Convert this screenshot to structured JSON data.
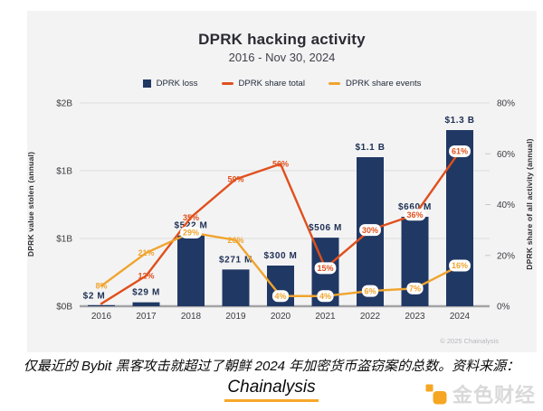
{
  "chart_data": {
    "type": "combo-bar-line",
    "title": "DPRK hacking activity",
    "subtitle": "2016 - Nov 30, 2024",
    "legend_position": "top",
    "grid": "horizontal",
    "background": "#f3f3f4",
    "categories": [
      "2016",
      "2017",
      "2018",
      "2019",
      "2020",
      "2021",
      "2022",
      "2023",
      "2024"
    ],
    "series": [
      {
        "name": "DPRK loss",
        "type": "bar",
        "axis": "left",
        "color": "#203864",
        "unit": "USD millions",
        "values": [
          2,
          29,
          522,
          271,
          300,
          506,
          1100,
          660,
          1300
        ],
        "labels": [
          "$2 M",
          "$29 M",
          "$522 M",
          "$271 M",
          "$300 M",
          "$506 M",
          "$1.1 B",
          "$660 M",
          "$1.3 B"
        ],
        "label_offsets": {
          "0": [
            -8,
            0
          ]
        }
      },
      {
        "name": "DPRK share total",
        "type": "line",
        "axis": "right",
        "color": "#e0501c",
        "unit": "%",
        "values": [
          1,
          12,
          35,
          50,
          56,
          15,
          30,
          36,
          61
        ],
        "labels": [
          "",
          "12%",
          "35%",
          "50%",
          "56%",
          "15%",
          "30%",
          "36%",
          "61%"
        ],
        "chips": [
          false,
          false,
          false,
          false,
          false,
          true,
          true,
          true,
          true
        ]
      },
      {
        "name": "DPRK share events",
        "type": "line",
        "axis": "right",
        "color": "#f0a42e",
        "unit": "%",
        "values": [
          8,
          21,
          29,
          26,
          4,
          4,
          6,
          7,
          16
        ],
        "labels": [
          "8%",
          "21%",
          "29%",
          "26%",
          "4%",
          "4%",
          "6%",
          "7%",
          "16%"
        ],
        "chips": [
          false,
          false,
          true,
          false,
          true,
          true,
          true,
          true,
          true
        ]
      }
    ],
    "axes": {
      "left": {
        "title": "DPRK value stolen (annual)",
        "tick_labels": [
          "$0B",
          "$1B",
          "$1B",
          "$2B"
        ],
        "tick_values_busd": [
          0,
          0.5,
          1,
          1.5
        ],
        "range_busd": [
          0,
          1.5
        ]
      },
      "right": {
        "title": "DPRK share of all activity (annual)",
        "tick_labels": [
          "0%",
          "20%",
          "40%",
          "60%",
          "80%"
        ],
        "tick_values_pct": [
          0,
          20,
          40,
          60,
          80
        ],
        "range_pct": [
          0,
          80
        ]
      },
      "x": {
        "tick_labels": [
          "2016",
          "2017",
          "2018",
          "2019",
          "2020",
          "2021",
          "2022",
          "2023",
          "2024"
        ]
      }
    },
    "copyright": "© 2025 Chainalysis"
  },
  "caption": {
    "line1": "仅最近的 Bybit 黑客攻击就超过了朝鲜 2024 年加密货币盗窃案的总数。资料来源：",
    "link": "Chainalysis",
    "underline_color": "#f7a62a"
  },
  "watermark": {
    "brand": "金色财经",
    "accent": "#f5a623",
    "text_color": "#d9d9d9"
  }
}
